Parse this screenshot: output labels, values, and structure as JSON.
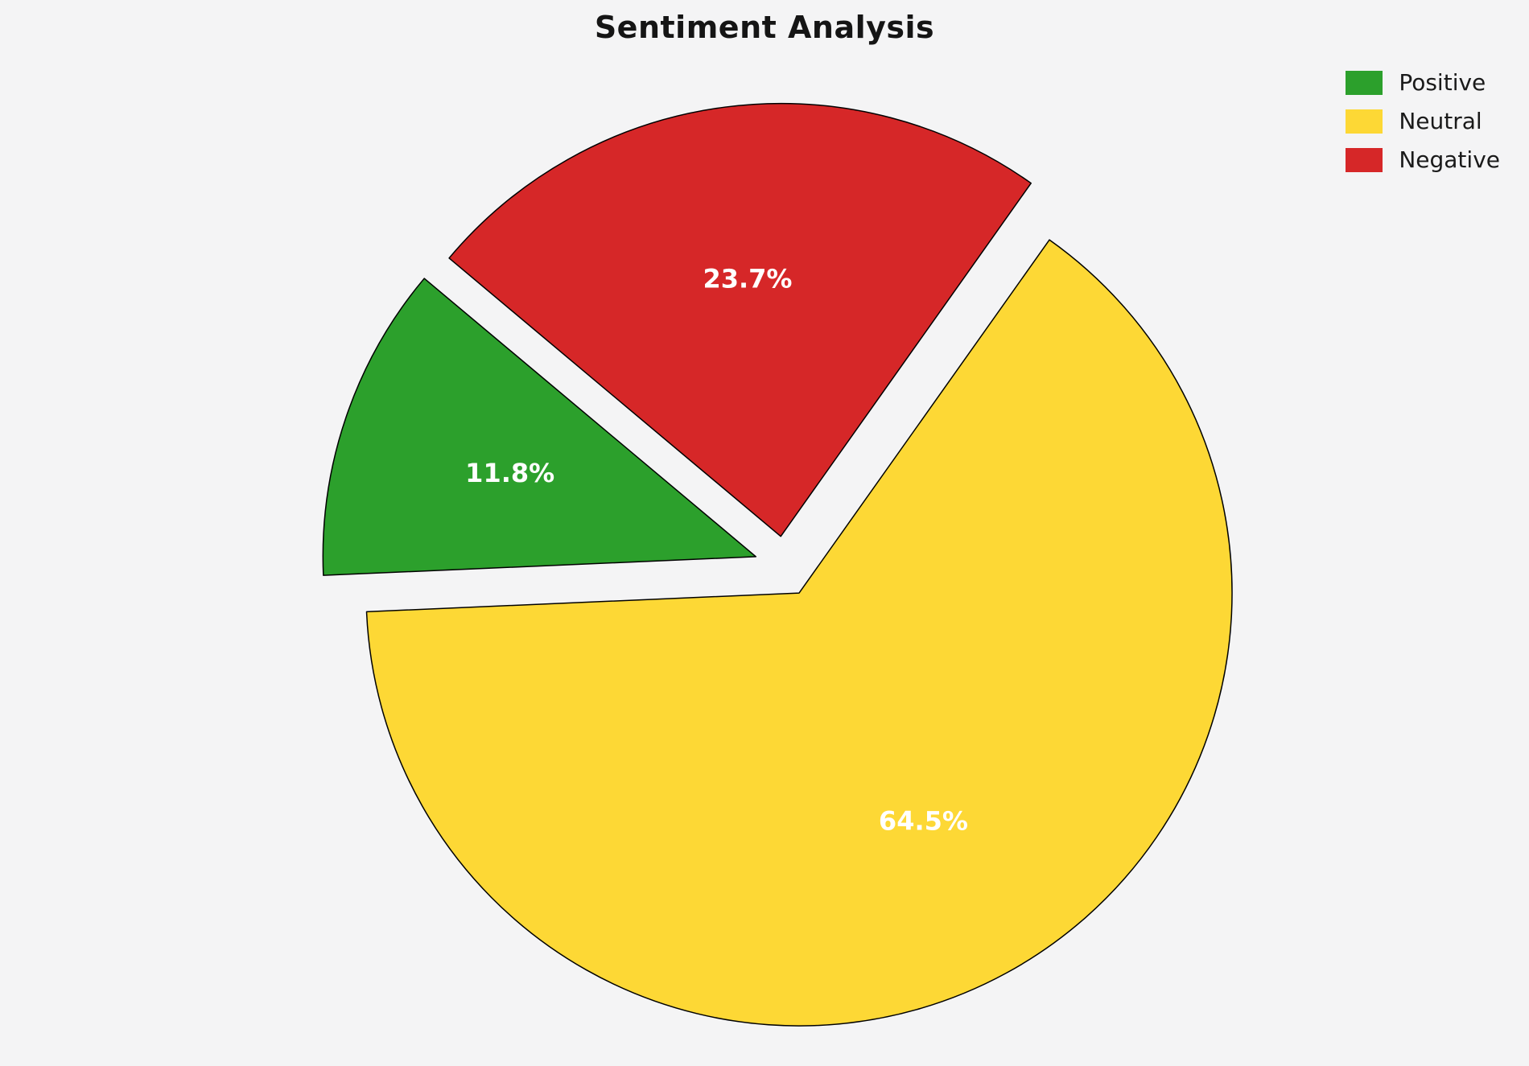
{
  "chart_data": {
    "type": "pie",
    "title": "Sentiment Analysis",
    "slices": [
      {
        "label": "Positive",
        "value": 11.8,
        "pct_label": "11.8%",
        "color": "#2ca02c"
      },
      {
        "label": "Neutral",
        "value": 64.5,
        "pct_label": "64.5%",
        "color": "#fdd835"
      },
      {
        "label": "Negative",
        "value": 23.7,
        "pct_label": "23.7%",
        "color": "#d62728"
      }
    ],
    "layout": {
      "start_angle": 140,
      "counterclockwise": true,
      "explode": 0.07,
      "pct_distance": 0.6,
      "edge_color": "#000000",
      "edge_width": 1.5,
      "label_color": "#ffffff",
      "legend_position": "top-right",
      "legend_frame": false,
      "background": "#f4f4f5"
    }
  }
}
